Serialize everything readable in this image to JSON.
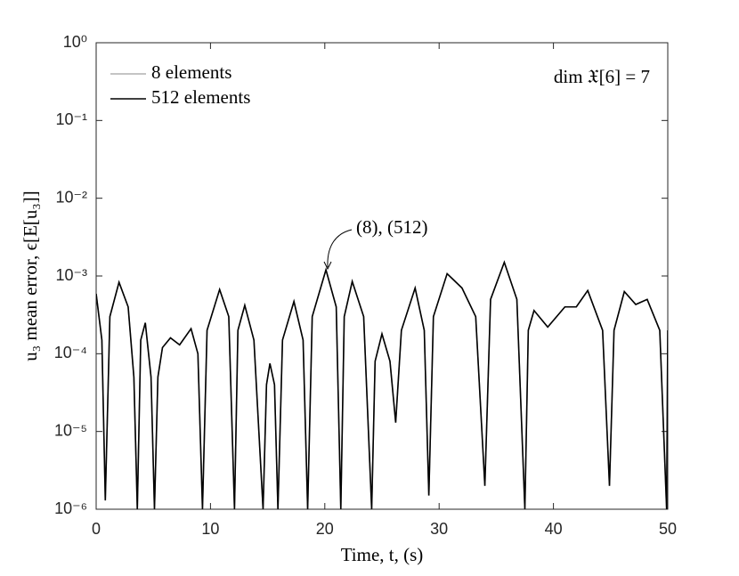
{
  "chart_data": {
    "type": "line",
    "xlabel": "Time, t, (s)",
    "ylabel": "u₃ mean error, ϵ[E[u₃]]",
    "annotations": [
      "dim 𝔛[6] = 7",
      "(8), (512)"
    ],
    "x": [
      0,
      0.5,
      0.8,
      1.2,
      2,
      2.8,
      3.3,
      3.6,
      3.9,
      4.3,
      4.8,
      5.1,
      5.4,
      5.8,
      6.5,
      7.3,
      8.3,
      8.9,
      9.3,
      9.7,
      10.8,
      11.6,
      12.1,
      12.4,
      13,
      13.8,
      14.6,
      14.9,
      15.2,
      15.6,
      15.9,
      16.3,
      17.3,
      18.1,
      18.5,
      18.9,
      20.1,
      21,
      21.4,
      21.7,
      22.4,
      23.4,
      24.1,
      24.4,
      25,
      25.7,
      26.2,
      26.7,
      27.9,
      28.7,
      29.1,
      29.5,
      30.7,
      32,
      33.2,
      34,
      34.5,
      35.7,
      36.8,
      37.5,
      37.8,
      38.3,
      39.5,
      41,
      42,
      43,
      44.3,
      44.9,
      45.3,
      46.2,
      47.2,
      48.2,
      49.3,
      49.9,
      50
    ],
    "series": [
      {
        "name": "8 elements",
        "color": "#b0b0b0",
        "values": [
          0.00059,
          0.00015,
          1.3e-06,
          0.0003,
          0.00083,
          0.0004,
          5e-05,
          1e-06,
          0.00015,
          0.00025,
          5e-05,
          1e-06,
          5e-05,
          0.00012,
          0.00016,
          0.00013,
          0.00021,
          0.0001,
          1e-06,
          0.0002,
          0.00067,
          0.0003,
          1e-06,
          0.0002,
          0.00042,
          0.00015,
          1e-06,
          4e-05,
          7.5e-05,
          4e-05,
          1e-06,
          0.00015,
          0.00047,
          0.00015,
          1e-06,
          0.0003,
          0.0012,
          0.0004,
          1e-06,
          0.0003,
          0.00085,
          0.0003,
          1e-06,
          8e-05,
          0.00018,
          8e-05,
          1.3e-05,
          0.0002,
          0.0007,
          0.0002,
          1.5e-06,
          0.0003,
          0.00107,
          0.0007,
          0.0003,
          2e-06,
          0.0005,
          0.0015,
          0.0005,
          1e-06,
          0.0002,
          0.00036,
          0.00022,
          0.0004,
          0.0004,
          0.00065,
          0.0002,
          2e-06,
          0.0002,
          0.00063,
          0.00043,
          0.0005,
          0.0002,
          1e-06,
          0.0002
        ]
      },
      {
        "name": "512 elements",
        "color": "#000000",
        "values": [
          0.00059,
          0.00015,
          1.3e-06,
          0.0003,
          0.00083,
          0.0004,
          5e-05,
          1e-06,
          0.00015,
          0.00025,
          5e-05,
          1e-06,
          5e-05,
          0.00012,
          0.00016,
          0.00013,
          0.00021,
          0.0001,
          1e-06,
          0.0002,
          0.00067,
          0.0003,
          1e-06,
          0.0002,
          0.00042,
          0.00015,
          1e-06,
          4e-05,
          7.5e-05,
          4e-05,
          1e-06,
          0.00015,
          0.00047,
          0.00015,
          1e-06,
          0.0003,
          0.0012,
          0.0004,
          1e-06,
          0.0003,
          0.00085,
          0.0003,
          1e-06,
          8e-05,
          0.00018,
          8e-05,
          1.3e-05,
          0.0002,
          0.0007,
          0.0002,
          1.5e-06,
          0.0003,
          0.00107,
          0.0007,
          0.0003,
          2e-06,
          0.0005,
          0.0015,
          0.0005,
          1e-06,
          0.0002,
          0.00036,
          0.00022,
          0.0004,
          0.0004,
          0.00065,
          0.0002,
          2e-06,
          0.0002,
          0.00063,
          0.00043,
          0.0005,
          0.0002,
          1e-06,
          0.0002
        ]
      }
    ],
    "xlim": [
      0,
      50
    ],
    "xticks": [
      0,
      10,
      20,
      30,
      40,
      50
    ],
    "ylim": [
      1e-06,
      1
    ],
    "yscale": "log",
    "yticks": [
      {
        "value": 1,
        "label": "10⁰"
      },
      {
        "value": 0.1,
        "label": "10⁻¹"
      },
      {
        "value": 0.01,
        "label": "10⁻²"
      },
      {
        "value": 0.001,
        "label": "10⁻³"
      },
      {
        "value": 0.0001,
        "label": "10⁻⁴"
      },
      {
        "value": 1e-05,
        "label": "10⁻⁵"
      },
      {
        "value": 1e-06,
        "label": "10⁻⁶"
      }
    ],
    "grid": false,
    "legend": "upper left"
  }
}
